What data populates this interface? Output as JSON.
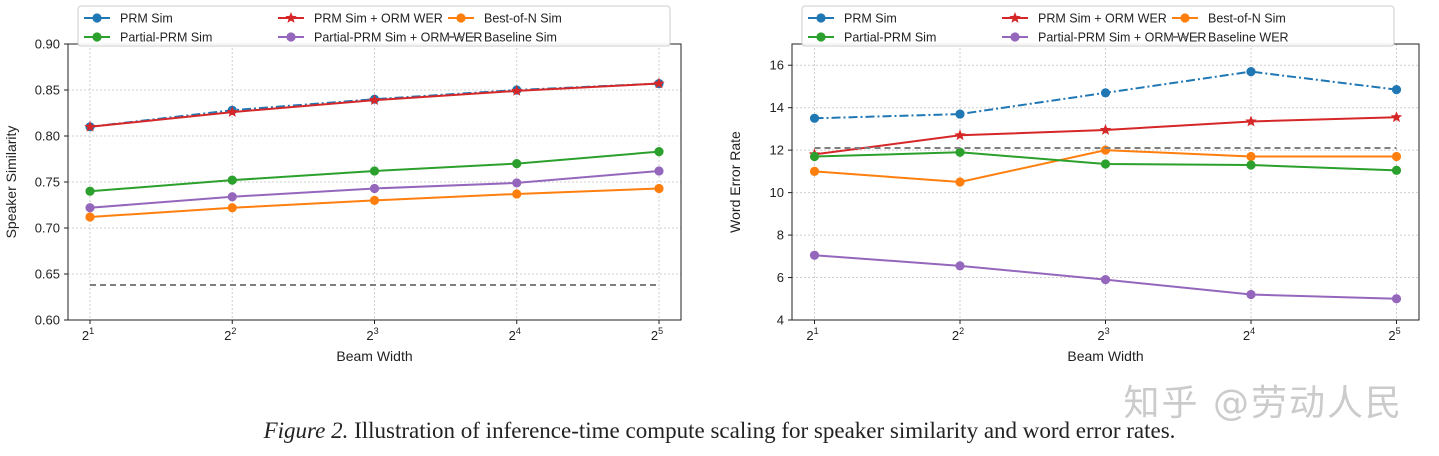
{
  "figure": {
    "caption_label": "Figure 2.",
    "caption_text": "Illustration of inference-time compute scaling for speaker similarity and word error rates.",
    "watermark": "知乎 @劳动人民"
  },
  "colors": {
    "blue": "#1f77b4",
    "red": "#d62728",
    "orange": "#ff7f0e",
    "green": "#2ca02c",
    "purple": "#9467bd",
    "gray": "#7f7f7f"
  },
  "chart_data": [
    {
      "type": "line",
      "xlabel": "Beam Width",
      "ylabel": "Speaker Similarity",
      "x_ticks": [
        {
          "base": "2",
          "exp": "1"
        },
        {
          "base": "2",
          "exp": "2"
        },
        {
          "base": "2",
          "exp": "3"
        },
        {
          "base": "2",
          "exp": "4"
        },
        {
          "base": "2",
          "exp": "5"
        }
      ],
      "x": [
        2,
        4,
        8,
        16,
        32
      ],
      "x_scale": "log2",
      "ylim": [
        0.6,
        0.9
      ],
      "y_ticks": [
        "0.60",
        "0.65",
        "0.70",
        "0.75",
        "0.80",
        "0.85",
        "0.90"
      ],
      "grid": true,
      "legend_location": "top",
      "series": [
        {
          "name": "PRM Sim",
          "color": "#1f77b4",
          "style": "dashdot",
          "marker": "circle",
          "values": [
            0.81,
            0.828,
            0.84,
            0.85,
            0.857
          ]
        },
        {
          "name": "PRM Sim + ORM WER",
          "color": "#d62728",
          "style": "solid",
          "marker": "star",
          "values": [
            0.81,
            0.826,
            0.839,
            0.849,
            0.857
          ]
        },
        {
          "name": "Best-of-N Sim",
          "color": "#ff7f0e",
          "style": "solid",
          "marker": "circle",
          "values": [
            0.712,
            0.722,
            0.73,
            0.737,
            0.743
          ]
        },
        {
          "name": "Partial-PRM Sim",
          "color": "#2ca02c",
          "style": "solid",
          "marker": "circle",
          "values": [
            0.74,
            0.752,
            0.762,
            0.77,
            0.783
          ]
        },
        {
          "name": "Partial-PRM Sim + ORM WER",
          "color": "#9467bd",
          "style": "solid",
          "marker": "circle",
          "values": [
            0.722,
            0.734,
            0.743,
            0.749,
            0.762
          ]
        },
        {
          "name": "Baseline Sim",
          "color": "#7f7f7f",
          "style": "dashed",
          "marker": "none",
          "values": [
            0.638,
            0.638,
            0.638,
            0.638,
            0.638
          ]
        }
      ]
    },
    {
      "type": "line",
      "xlabel": "Beam Width",
      "ylabel": "Word Error Rate",
      "x_ticks": [
        {
          "base": "2",
          "exp": "1"
        },
        {
          "base": "2",
          "exp": "2"
        },
        {
          "base": "2",
          "exp": "3"
        },
        {
          "base": "2",
          "exp": "4"
        },
        {
          "base": "2",
          "exp": "5"
        }
      ],
      "x": [
        2,
        4,
        8,
        16,
        32
      ],
      "x_scale": "log2",
      "ylim": [
        4,
        17
      ],
      "y_ticks": [
        "4",
        "6",
        "8",
        "10",
        "12",
        "14",
        "16"
      ],
      "grid": true,
      "legend_location": "top",
      "series": [
        {
          "name": "PRM Sim",
          "color": "#1f77b4",
          "style": "dashdot",
          "marker": "circle",
          "values": [
            13.5,
            13.7,
            14.7,
            15.7,
            14.85
          ]
        },
        {
          "name": "PRM Sim + ORM WER",
          "color": "#d62728",
          "style": "solid",
          "marker": "star",
          "values": [
            11.8,
            12.7,
            12.95,
            13.35,
            13.55
          ]
        },
        {
          "name": "Best-of-N Sim",
          "color": "#ff7f0e",
          "style": "solid",
          "marker": "circle",
          "values": [
            11.0,
            10.5,
            12.0,
            11.7,
            11.7
          ]
        },
        {
          "name": "Partial-PRM Sim",
          "color": "#2ca02c",
          "style": "solid",
          "marker": "circle",
          "values": [
            11.7,
            11.9,
            11.35,
            11.3,
            11.05
          ]
        },
        {
          "name": "Partial-PRM Sim + ORM WER",
          "color": "#9467bd",
          "style": "solid",
          "marker": "circle",
          "values": [
            7.05,
            6.55,
            5.9,
            5.2,
            5.0
          ]
        },
        {
          "name": "Baseline WER",
          "color": "#7f7f7f",
          "style": "dashed",
          "marker": "none",
          "values": [
            12.1,
            12.1,
            12.1,
            12.1,
            12.1
          ]
        }
      ]
    }
  ]
}
